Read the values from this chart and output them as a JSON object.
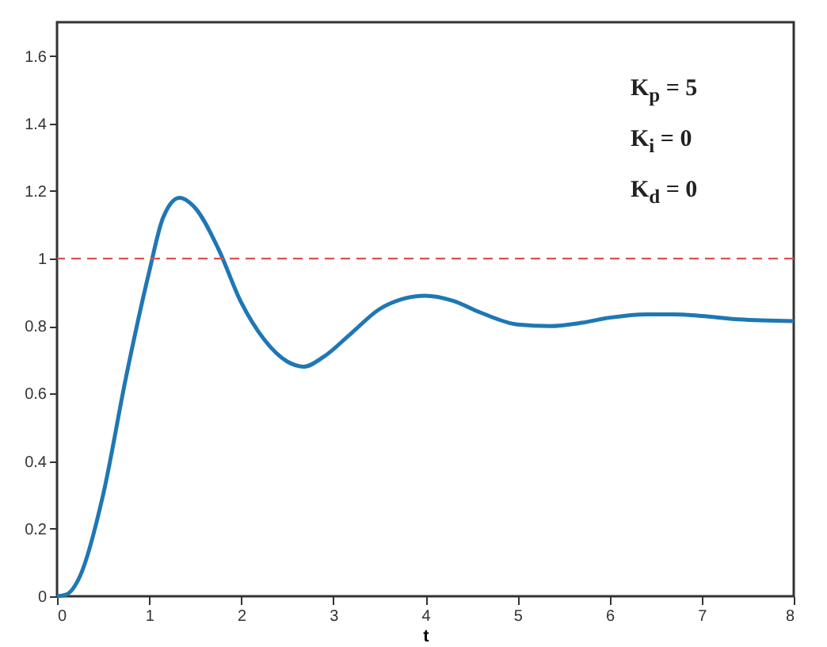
{
  "chart_data": {
    "type": "line",
    "xlabel": "t",
    "x": [
      0,
      0.1,
      0.25,
      0.5,
      0.75,
      1.0,
      1.15,
      1.33,
      1.5,
      1.75,
      2.0,
      2.25,
      2.5,
      2.68,
      2.9,
      3.2,
      3.5,
      3.75,
      4.0,
      4.3,
      4.6,
      5.0,
      5.35,
      5.7,
      6.0,
      6.4,
      6.7,
      7.0,
      7.4,
      8.0
    ],
    "series": [
      {
        "color": "#1f77b4",
        "values": [
          0,
          0.005,
          0.06,
          0.3,
          0.65,
          0.96,
          1.12,
          1.18,
          1.15,
          1.03,
          0.87,
          0.76,
          0.695,
          0.68,
          0.71,
          0.78,
          0.85,
          0.88,
          0.89,
          0.875,
          0.84,
          0.805,
          0.8,
          0.81,
          0.825,
          0.835,
          0.835,
          0.83,
          0.82,
          0.815
        ]
      }
    ],
    "xlim": [
      0,
      8
    ],
    "xticks": [
      0,
      1,
      2,
      3,
      4,
      5,
      6,
      7,
      8
    ],
    "ylim": [
      0,
      1.7
    ],
    "yticks": [
      0,
      0.2,
      0.4,
      0.6,
      0.8,
      1,
      1.2,
      1.4,
      1.6
    ],
    "ref_lines": [
      {
        "axis": "y",
        "value": 1,
        "color": "#d9534f",
        "line_style": "dashed"
      }
    ],
    "annotations": [
      "K$_{p}$ = 5",
      "K$_{i}$ = 0",
      "K$_{d}$ = 0"
    ],
    "grid": false
  }
}
